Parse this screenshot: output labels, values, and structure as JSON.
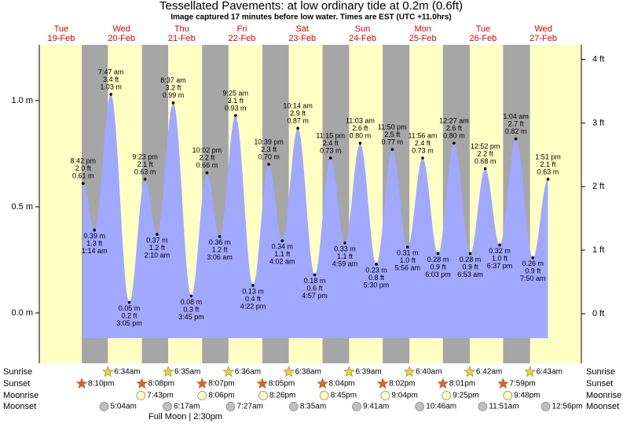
{
  "chart_data": {
    "type": "tide",
    "title": "Tessellated Pavements: at low  ordinary tide at 0.2m (0.6ft)",
    "subtitle": "Image captured 17 minutes before low water. Times are EST (UTC +11.0hrs)",
    "ylim": [
      -0.237,
      1.263
    ],
    "yticks": [
      {
        "value": 0,
        "label": "0.0 m"
      },
      {
        "value": 0.5,
        "label": "0.5 m"
      },
      {
        "value": 1,
        "label": "1.0 m"
      }
    ],
    "y2lim": [
      -0.78,
      4.23
    ],
    "y2ticks": [
      {
        "value": 0,
        "label": "0 ft"
      },
      {
        "value": 1,
        "label": "1 ft"
      },
      {
        "value": 2,
        "label": "2 ft"
      },
      {
        "value": 3,
        "label": "3 ft"
      },
      {
        "value": 4,
        "label": "4 ft"
      }
    ],
    "row_labels": [
      "Sunrise",
      "Sunset",
      "Moonrise",
      "Moonset"
    ],
    "annotation": "Full Moon | 2:30pm",
    "colors": {
      "day": "#ffffc4",
      "night": "#a6a6a6",
      "water": "#a0a8ff"
    },
    "days": [
      {
        "weekday": "Tue",
        "date": "19-Feb",
        "sunrise": null,
        "sunset": "8:10pm",
        "moonrise": null,
        "moonset": null,
        "tides": [
          {
            "time": "8:42 pm",
            "m": 0.61,
            "m_label": "0.61 m",
            "ft": 2.0,
            "ft_label": "2.0 ft"
          }
        ]
      },
      {
        "weekday": "Wed",
        "date": "20-Feb",
        "sunrise": "6:34am",
        "sunset": "8:08pm",
        "moonrise": "7:43pm",
        "moonset": "5:04am",
        "tides": [
          {
            "time": "1:14 am",
            "m": 0.39,
            "m_label": "0.39 m",
            "ft": 1.3,
            "ft_label": "1.3 ft"
          },
          {
            "time": "7:47 am",
            "m": 1.03,
            "m_label": "1.03 m",
            "ft": 3.4,
            "ft_label": "3.4 ft"
          },
          {
            "time": "3:05 pm",
            "m": 0.05,
            "m_label": "0.05 m",
            "ft": 0.2,
            "ft_label": "0.2 ft"
          },
          {
            "time": "9:23 pm",
            "m": 0.63,
            "m_label": "0.63 m",
            "ft": 2.1,
            "ft_label": "2.1 ft"
          }
        ]
      },
      {
        "weekday": "Thu",
        "date": "21-Feb",
        "sunrise": "6:35am",
        "sunset": "8:07pm",
        "moonrise": "8:06pm",
        "moonset": "6:17am",
        "tides": [
          {
            "time": "2:10 am",
            "m": 0.37,
            "m_label": "0.37 m",
            "ft": 1.2,
            "ft_label": "1.2 ft"
          },
          {
            "time": "8:37 am",
            "m": 0.99,
            "m_label": "0.99 m",
            "ft": 3.2,
            "ft_label": "3.2 ft"
          },
          {
            "time": "3:45 pm",
            "m": 0.08,
            "m_label": "0.08 m",
            "ft": 0.3,
            "ft_label": "0.3 ft"
          },
          {
            "time": "10:02 pm",
            "m": 0.66,
            "m_label": "0.66 m",
            "ft": 2.2,
            "ft_label": "2.2 ft"
          }
        ]
      },
      {
        "weekday": "Fri",
        "date": "22-Feb",
        "sunrise": "6:36am",
        "sunset": "8:05pm",
        "moonrise": "8:26pm",
        "moonset": "7:27am",
        "tides": [
          {
            "time": "3:06 am",
            "m": 0.36,
            "m_label": "0.36 m",
            "ft": 1.2,
            "ft_label": "1.2 ft"
          },
          {
            "time": "9:25 am",
            "m": 0.93,
            "m_label": "0.93 m",
            "ft": 3.1,
            "ft_label": "3.1 ft"
          },
          {
            "time": "4:22 pm",
            "m": 0.13,
            "m_label": "0.13 m",
            "ft": 0.4,
            "ft_label": "0.4 ft"
          },
          {
            "time": "10:39 pm",
            "m": 0.7,
            "m_label": "0.70 m",
            "ft": 2.3,
            "ft_label": "2.3 ft"
          }
        ]
      },
      {
        "weekday": "Sat",
        "date": "23-Feb",
        "sunrise": "6:38am",
        "sunset": "8:04pm",
        "moonrise": "8:45pm",
        "moonset": "8:35am",
        "tides": [
          {
            "time": "4:02 am",
            "m": 0.34,
            "m_label": "0.34 m",
            "ft": 1.1,
            "ft_label": "1.1 ft"
          },
          {
            "time": "10:14 am",
            "m": 0.87,
            "m_label": "0.87 m",
            "ft": 2.9,
            "ft_label": "2.9 ft"
          },
          {
            "time": "4:57 pm",
            "m": 0.18,
            "m_label": "0.18 m",
            "ft": 0.6,
            "ft_label": "0.6 ft"
          },
          {
            "time": "11:15 pm",
            "m": 0.73,
            "m_label": "0.73 m",
            "ft": 2.4,
            "ft_label": "2.4 ft"
          }
        ]
      },
      {
        "weekday": "Sun",
        "date": "24-Feb",
        "sunrise": "6:39am",
        "sunset": "8:02pm",
        "moonrise": "9:04pm",
        "moonset": "9:41am",
        "tides": [
          {
            "time": "4:59 am",
            "m": 0.33,
            "m_label": "0.33 m",
            "ft": 1.1,
            "ft_label": "1.1 ft"
          },
          {
            "time": "11:03 am",
            "m": 0.8,
            "m_label": "0.80 m",
            "ft": 2.6,
            "ft_label": "2.6 ft"
          },
          {
            "time": "5:30 pm",
            "m": 0.23,
            "m_label": "0.23 m",
            "ft": 0.8,
            "ft_label": "0.8 ft"
          },
          {
            "time": "11:50 pm",
            "m": 0.77,
            "m_label": "0.77 m",
            "ft": 2.5,
            "ft_label": "2.5 ft"
          }
        ]
      },
      {
        "weekday": "Mon",
        "date": "25-Feb",
        "sunrise": "6:40am",
        "sunset": "8:01pm",
        "moonrise": "9:25pm",
        "moonset": "10:46am",
        "tides": [
          {
            "time": "5:56 am",
            "m": 0.31,
            "m_label": "0.31 m",
            "ft": 1.0,
            "ft_label": "1.0 ft"
          },
          {
            "time": "11:56 am",
            "m": 0.73,
            "m_label": "0.73 m",
            "ft": 2.4,
            "ft_label": "2.4 ft"
          },
          {
            "time": "6:03 pm",
            "m": 0.28,
            "m_label": "0.28 m",
            "ft": 0.9,
            "ft_label": "0.9 ft"
          }
        ]
      },
      {
        "weekday": "Tue",
        "date": "26-Feb",
        "sunrise": "6:42am",
        "sunset": "7:59pm",
        "moonrise": "9:48pm",
        "moonset": "11:51am",
        "tides": [
          {
            "time": "12:27 am",
            "m": 0.8,
            "m_label": "0.80 m",
            "ft": 2.6,
            "ft_label": "2.6 ft"
          },
          {
            "time": "6:53 am",
            "m": 0.28,
            "m_label": "0.28 m",
            "ft": 0.9,
            "ft_label": "0.9 ft"
          },
          {
            "time": "12:52 pm",
            "m": 0.68,
            "m_label": "0.68 m",
            "ft": 2.2,
            "ft_label": "2.2 ft"
          },
          {
            "time": "6:37 pm",
            "m": 0.32,
            "m_label": "0.32 m",
            "ft": 1.0,
            "ft_label": "1.0 ft"
          }
        ]
      },
      {
        "weekday": "Wed",
        "date": "27-Feb",
        "sunrise": "6:43am",
        "sunset": null,
        "moonrise": null,
        "moonset": "12:56pm",
        "tides": [
          {
            "time": "1:04 am",
            "m": 0.82,
            "m_label": "0.82 m",
            "ft": 2.7,
            "ft_label": "2.7 ft"
          },
          {
            "time": "7:50 am",
            "m": 0.26,
            "m_label": "0.26 m",
            "ft": 0.9,
            "ft_label": "0.9 ft"
          },
          {
            "time": "1:51 pm",
            "m": 0.63,
            "m_label": "0.63 m",
            "ft": 2.1,
            "ft_label": "2.1 ft"
          }
        ]
      }
    ]
  }
}
